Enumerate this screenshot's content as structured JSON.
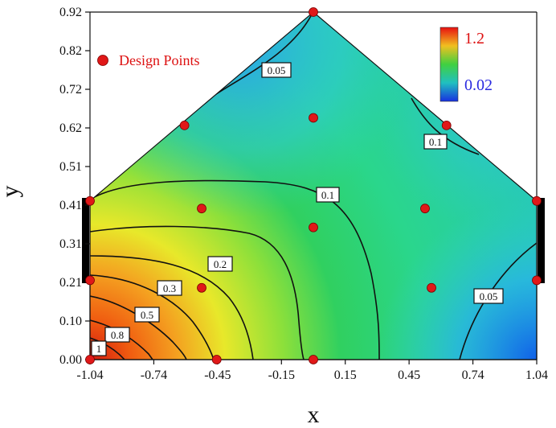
{
  "chart_data": {
    "type": "contour",
    "xlabel": "x",
    "ylabel": "y",
    "x_ticks": [
      "-1.04",
      "-0.74",
      "-0.45",
      "-0.15",
      "0.15",
      "0.45",
      "0.74",
      "1.04"
    ],
    "y_ticks": [
      "0.00",
      "0.10",
      "0.21",
      "0.31",
      "0.41",
      "0.51",
      "0.62",
      "0.72",
      "0.82",
      "0.92"
    ],
    "xlim": [
      -1.04,
      1.04
    ],
    "ylim": [
      0.0,
      0.92
    ],
    "domain_polygon": [
      [
        -1.04,
        0.0
      ],
      [
        1.04,
        0.0
      ],
      [
        1.04,
        0.42
      ],
      [
        0.0,
        0.92
      ],
      [
        -1.04,
        0.42
      ]
    ],
    "colorbar": {
      "max_label": "1.2",
      "min_label": "0.02",
      "max_color": "#e01818",
      "min_color": "#2a2ae0"
    },
    "legend": {
      "label": "Design Points",
      "marker_color": "#e01818",
      "placement": "top-left"
    },
    "contour_labels": [
      "0.05",
      "0.1",
      "0.1",
      "0.2",
      "0.3",
      "0.5",
      "0.8",
      "1",
      "0.05"
    ],
    "design_points": [
      [
        -1.04,
        0.0
      ],
      [
        -0.45,
        0.0
      ],
      [
        0.0,
        0.0
      ],
      [
        -1.04,
        0.21
      ],
      [
        -0.52,
        0.19
      ],
      [
        0.55,
        0.19
      ],
      [
        1.04,
        0.21
      ],
      [
        -1.04,
        0.42
      ],
      [
        -0.52,
        0.4
      ],
      [
        0.0,
        0.35
      ],
      [
        0.52,
        0.4
      ],
      [
        1.04,
        0.42
      ],
      [
        0.0,
        0.64
      ],
      [
        -0.6,
        0.62
      ],
      [
        0.62,
        0.62
      ],
      [
        0.0,
        0.92
      ]
    ]
  }
}
